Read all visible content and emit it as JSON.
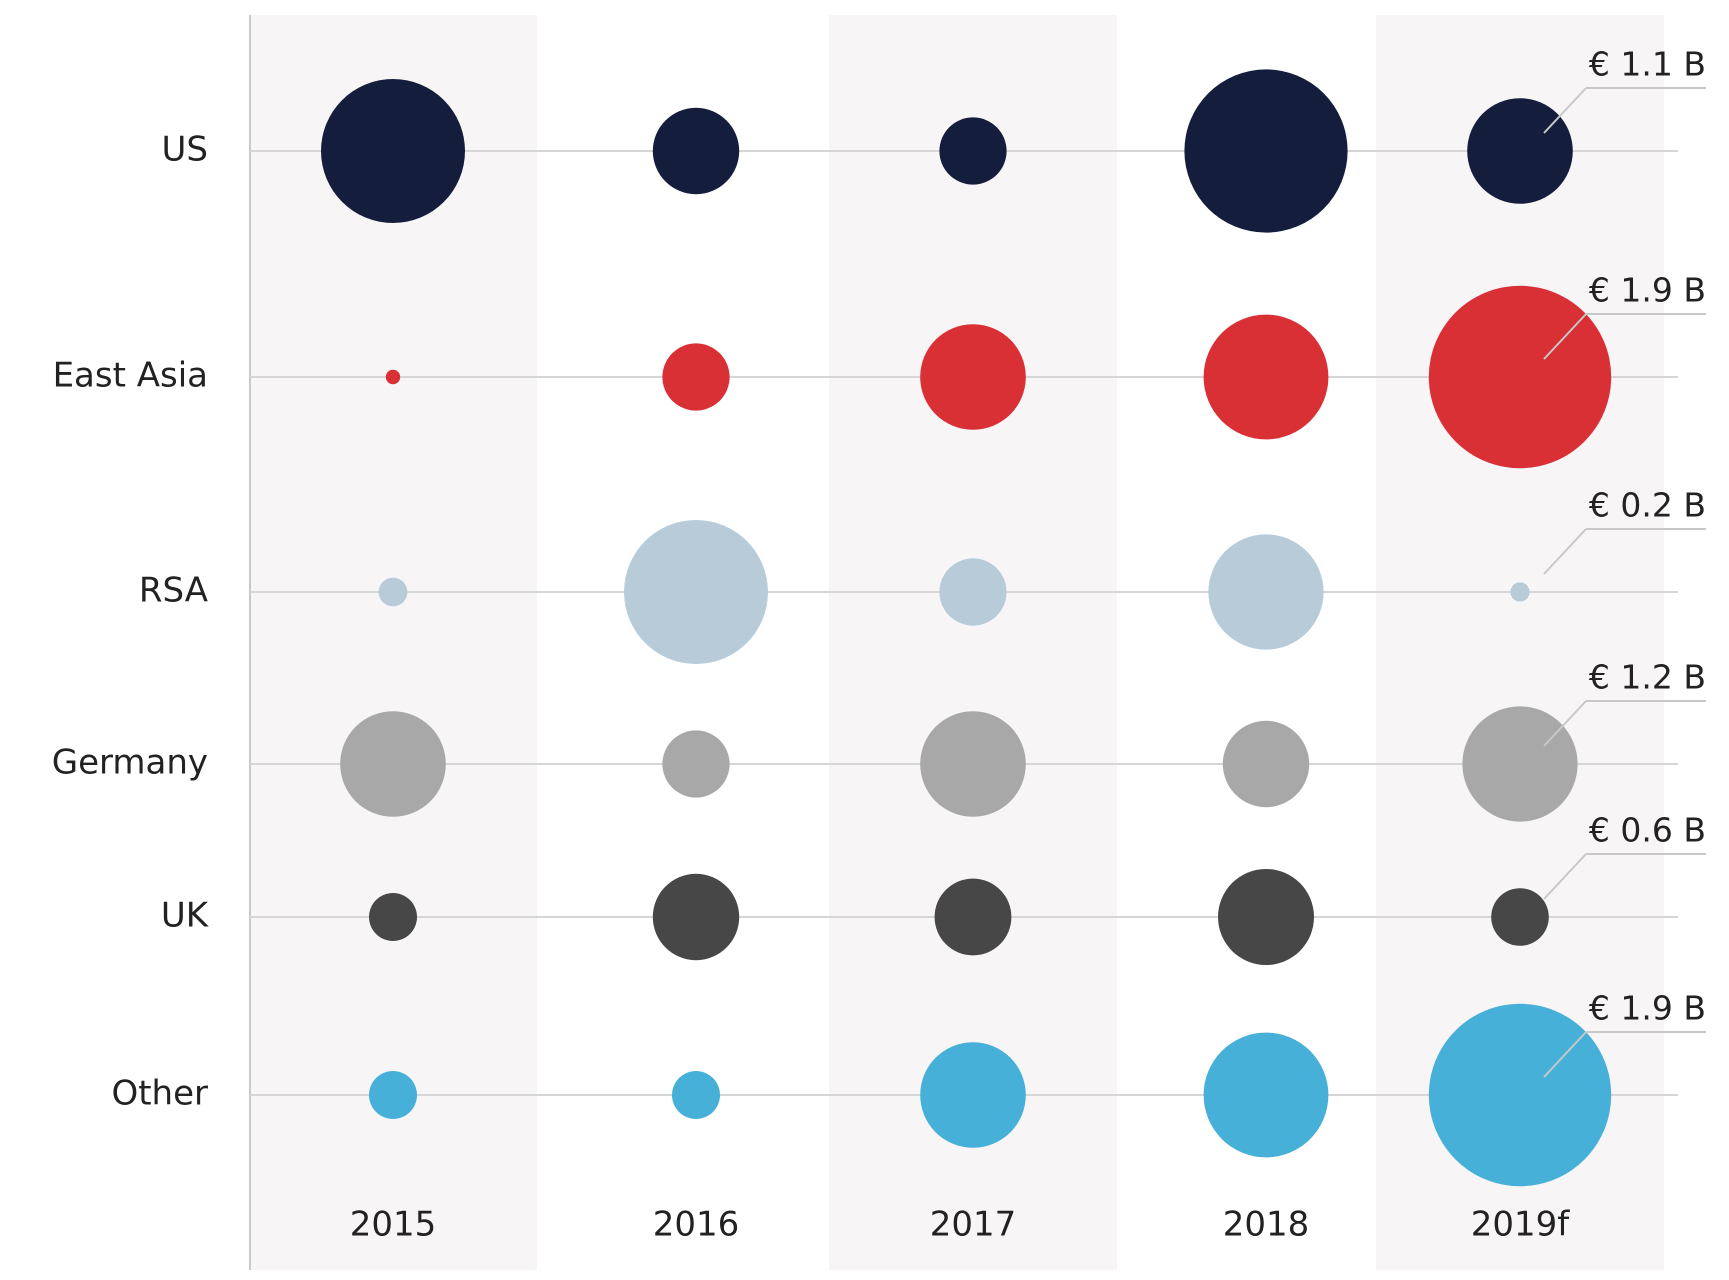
{
  "chart_data": {
    "type": "bubble-grid",
    "categories": [
      "2015",
      "2016",
      "2017",
      "2018",
      "2019f"
    ],
    "series": [
      {
        "name": "US",
        "color": "#141e3c",
        "values": [
          1.5,
          0.9,
          0.7,
          1.7,
          1.1
        ],
        "value_labels": [
          null,
          null,
          null,
          null,
          "€ 1.1 B"
        ]
      },
      {
        "name": "East Asia",
        "color": "#d93036",
        "values": [
          0.15,
          0.7,
          1.1,
          1.3,
          1.9
        ],
        "value_labels": [
          null,
          null,
          null,
          null,
          "€ 1.9 B"
        ]
      },
      {
        "name": "RSA",
        "color": "#b7cbd9",
        "values": [
          0.3,
          1.5,
          0.7,
          1.2,
          0.2
        ],
        "value_labels": [
          null,
          null,
          null,
          null,
          "€ 0.2 B"
        ]
      },
      {
        "name": "Germany",
        "color": "#a8a8a8",
        "values": [
          1.1,
          0.7,
          1.1,
          0.9,
          1.2
        ],
        "value_labels": [
          null,
          null,
          null,
          null,
          "€ 1.2 B"
        ]
      },
      {
        "name": "UK",
        "color": "#474747",
        "values": [
          0.5,
          0.9,
          0.8,
          1.0,
          0.6
        ],
        "value_labels": [
          null,
          null,
          null,
          null,
          "€ 0.6 B"
        ]
      },
      {
        "name": "Other",
        "color": "#47b0d8",
        "values": [
          0.5,
          0.5,
          1.1,
          1.3,
          1.9
        ],
        "value_labels": [
          null,
          null,
          null,
          null,
          "€ 1.9 B"
        ]
      }
    ]
  }
}
